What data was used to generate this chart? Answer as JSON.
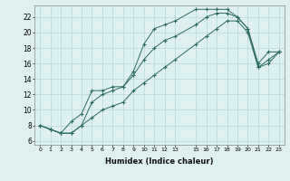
{
  "xlabel": "Humidex (Indice chaleur)",
  "ylabel": "",
  "bg_color": "#dff0f0",
  "grid_color": "#b8d8d8",
  "line_color": "#2a6b60",
  "xlim": [
    -0.5,
    23.5
  ],
  "ylim": [
    5.5,
    23.5
  ],
  "xticks": [
    0,
    1,
    2,
    3,
    4,
    5,
    6,
    7,
    8,
    9,
    10,
    11,
    12,
    13,
    15,
    16,
    17,
    18,
    19,
    20,
    21,
    22,
    23
  ],
  "yticks": [
    6,
    8,
    10,
    12,
    14,
    16,
    18,
    20,
    22
  ],
  "line1_x": [
    0,
    1,
    2,
    3,
    4,
    5,
    6,
    7,
    8,
    9,
    10,
    11,
    12,
    13,
    15,
    16,
    17,
    18,
    19,
    20,
    21,
    22,
    23
  ],
  "line1_y": [
    8.0,
    7.5,
    7.0,
    8.5,
    9.5,
    12.5,
    12.5,
    13.0,
    13.0,
    15.0,
    18.5,
    20.5,
    21.0,
    21.5,
    23.0,
    23.0,
    23.0,
    23.0,
    22.0,
    20.5,
    16.0,
    17.5,
    17.5
  ],
  "line2_x": [
    0,
    1,
    2,
    3,
    4,
    5,
    6,
    7,
    8,
    9,
    10,
    11,
    12,
    13,
    15,
    16,
    17,
    18,
    19,
    20,
    21,
    22,
    23
  ],
  "line2_y": [
    8.0,
    7.5,
    7.0,
    7.0,
    8.0,
    11.0,
    12.0,
    12.5,
    13.0,
    14.5,
    16.5,
    18.0,
    19.0,
    19.5,
    21.0,
    22.0,
    22.5,
    22.5,
    22.0,
    20.5,
    15.5,
    16.0,
    17.5
  ],
  "line3_x": [
    0,
    1,
    2,
    3,
    4,
    5,
    6,
    7,
    8,
    9,
    10,
    11,
    12,
    13,
    15,
    16,
    17,
    18,
    19,
    20,
    21,
    22,
    23
  ],
  "line3_y": [
    8.0,
    7.5,
    7.0,
    7.0,
    8.0,
    9.0,
    10.0,
    10.5,
    11.0,
    12.5,
    13.5,
    14.5,
    15.5,
    16.5,
    18.5,
    19.5,
    20.5,
    21.5,
    21.5,
    20.0,
    15.5,
    16.5,
    17.5
  ]
}
